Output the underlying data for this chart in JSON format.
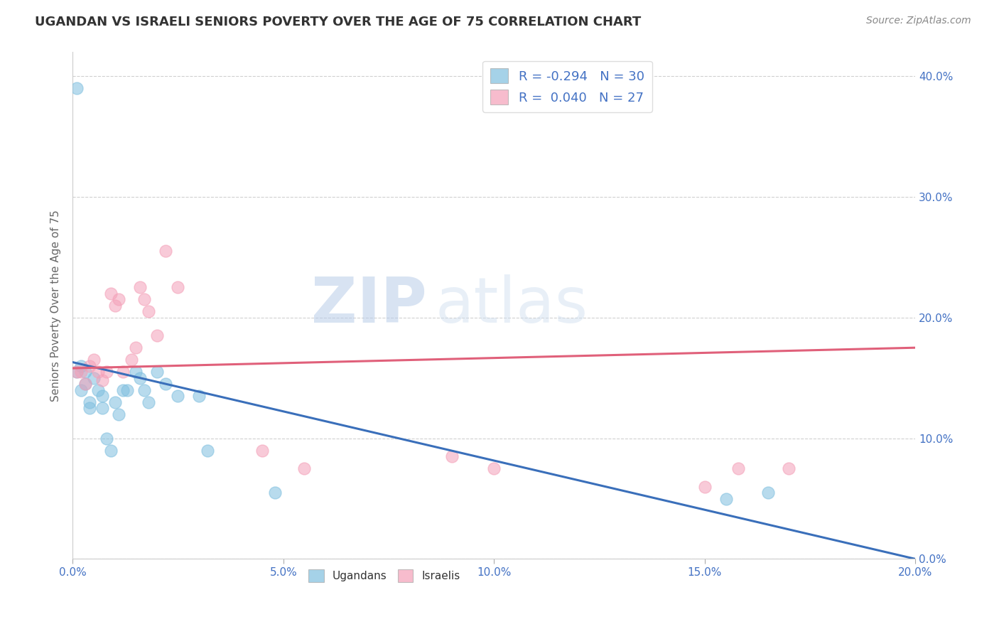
{
  "title": "UGANDAN VS ISRAELI SENIORS POVERTY OVER THE AGE OF 75 CORRELATION CHART",
  "source": "Source: ZipAtlas.com",
  "ylabel": "Seniors Poverty Over the Age of 75",
  "xlim": [
    0.0,
    0.2
  ],
  "ylim": [
    0.0,
    0.42
  ],
  "xticks": [
    0.0,
    0.05,
    0.1,
    0.15,
    0.2
  ],
  "yticks": [
    0.0,
    0.1,
    0.2,
    0.3,
    0.4
  ],
  "ugandan_x": [
    0.001,
    0.001,
    0.002,
    0.002,
    0.003,
    0.003,
    0.004,
    0.004,
    0.005,
    0.006,
    0.007,
    0.007,
    0.008,
    0.009,
    0.01,
    0.011,
    0.012,
    0.013,
    0.015,
    0.016,
    0.017,
    0.018,
    0.02,
    0.022,
    0.025,
    0.03,
    0.032,
    0.048,
    0.155,
    0.165
  ],
  "ugandan_y": [
    0.39,
    0.155,
    0.16,
    0.14,
    0.155,
    0.145,
    0.13,
    0.125,
    0.15,
    0.14,
    0.125,
    0.135,
    0.1,
    0.09,
    0.13,
    0.12,
    0.14,
    0.14,
    0.155,
    0.15,
    0.14,
    0.13,
    0.155,
    0.145,
    0.135,
    0.135,
    0.09,
    0.055,
    0.05,
    0.055
  ],
  "israeli_x": [
    0.001,
    0.002,
    0.003,
    0.004,
    0.005,
    0.006,
    0.007,
    0.008,
    0.009,
    0.01,
    0.011,
    0.012,
    0.014,
    0.015,
    0.016,
    0.017,
    0.018,
    0.02,
    0.022,
    0.025,
    0.045,
    0.055,
    0.09,
    0.1,
    0.15,
    0.158,
    0.17
  ],
  "israeli_y": [
    0.155,
    0.155,
    0.145,
    0.16,
    0.165,
    0.155,
    0.148,
    0.155,
    0.22,
    0.21,
    0.215,
    0.155,
    0.165,
    0.175,
    0.225,
    0.215,
    0.205,
    0.185,
    0.255,
    0.225,
    0.09,
    0.075,
    0.085,
    0.075,
    0.06,
    0.075,
    0.075
  ],
  "ugandan_R": -0.294,
  "ugandan_N": 30,
  "israeli_R": 0.04,
  "israeli_N": 27,
  "ugandan_color": "#7fbfdf",
  "israeli_color": "#f4a0b8",
  "ugandan_line_color": "#3a6fba",
  "israeli_line_color": "#e0607a",
  "watermark_zip": "ZIP",
  "watermark_atlas": "atlas",
  "background_color": "#ffffff",
  "grid_color": "#d0d0d0",
  "ugandan_line_start_y": 0.163,
  "ugandan_line_end_y": 0.0,
  "israeli_line_start_y": 0.158,
  "israeli_line_end_y": 0.175
}
